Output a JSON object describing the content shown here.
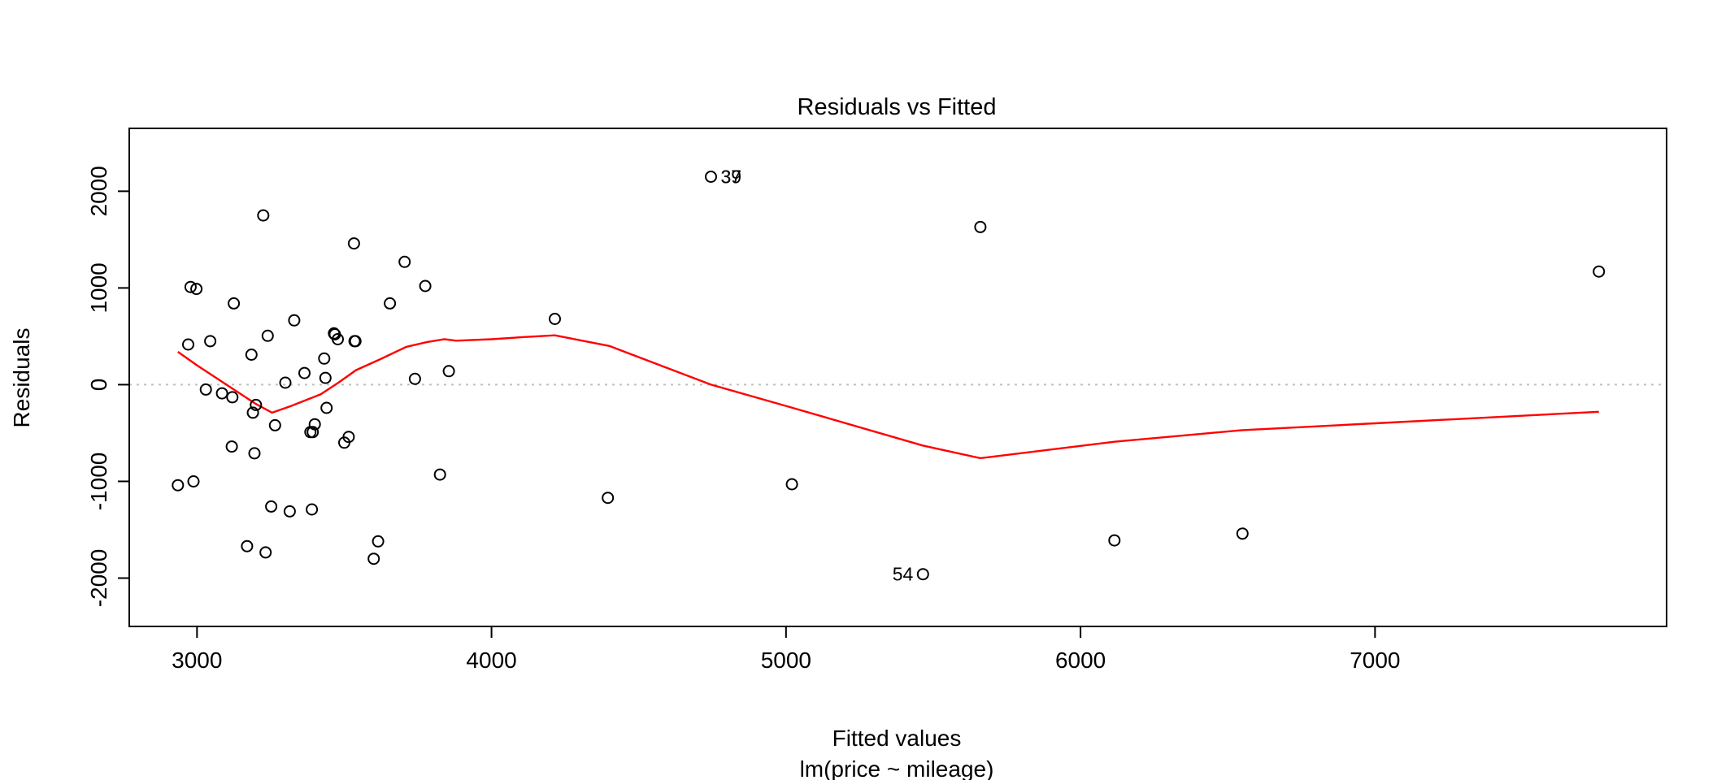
{
  "chart_data": {
    "type": "scatter",
    "title": "Residuals vs Fitted",
    "xlabel": "Fitted values",
    "subtitle": "lm(price ~ mileage)",
    "ylabel": "Residuals",
    "xlim": [
      2770,
      7990
    ],
    "ylim": [
      -2500,
      2650
    ],
    "x_ticks": [
      3000,
      4000,
      5000,
      6000,
      7000
    ],
    "y_ticks": [
      -2000,
      -1000,
      0,
      1000,
      2000
    ],
    "zero_line": 0,
    "grid": false,
    "colors": {
      "points": "#000000",
      "smooth": "#ff0000",
      "zero_line": "#bfbfbf"
    },
    "points": [
      {
        "x": 2935,
        "y": -1040
      },
      {
        "x": 2970,
        "y": 415
      },
      {
        "x": 2978,
        "y": 1010
      },
      {
        "x": 2988,
        "y": -1000
      },
      {
        "x": 2998,
        "y": 990
      },
      {
        "x": 3030,
        "y": -50
      },
      {
        "x": 3045,
        "y": 450
      },
      {
        "x": 3085,
        "y": -90
      },
      {
        "x": 3118,
        "y": -640
      },
      {
        "x": 3120,
        "y": -130
      },
      {
        "x": 3125,
        "y": 840
      },
      {
        "x": 3170,
        "y": -1670
      },
      {
        "x": 3185,
        "y": 310
      },
      {
        "x": 3190,
        "y": -290
      },
      {
        "x": 3195,
        "y": -710
      },
      {
        "x": 3200,
        "y": -210
      },
      {
        "x": 3225,
        "y": 1750
      },
      {
        "x": 3233,
        "y": -1735
      },
      {
        "x": 3240,
        "y": 505
      },
      {
        "x": 3252,
        "y": -1260
      },
      {
        "x": 3265,
        "y": -420
      },
      {
        "x": 3300,
        "y": 20
      },
      {
        "x": 3315,
        "y": -1310
      },
      {
        "x": 3330,
        "y": 665
      },
      {
        "x": 3365,
        "y": 120
      },
      {
        "x": 3385,
        "y": -490
      },
      {
        "x": 3390,
        "y": -1290
      },
      {
        "x": 3393,
        "y": -490
      },
      {
        "x": 3400,
        "y": -410
      },
      {
        "x": 3432,
        "y": 270
      },
      {
        "x": 3436,
        "y": 70
      },
      {
        "x": 3440,
        "y": -240
      },
      {
        "x": 3465,
        "y": 530
      },
      {
        "x": 3468,
        "y": 520
      },
      {
        "x": 3478,
        "y": 470
      },
      {
        "x": 3500,
        "y": -600
      },
      {
        "x": 3515,
        "y": -540
      },
      {
        "x": 3533,
        "y": 1460
      },
      {
        "x": 3535,
        "y": 450
      },
      {
        "x": 3538,
        "y": 450
      },
      {
        "x": 3600,
        "y": -1800
      },
      {
        "x": 3615,
        "y": -1620
      },
      {
        "x": 3655,
        "y": 840
      },
      {
        "x": 3705,
        "y": 1270
      },
      {
        "x": 3740,
        "y": 60
      },
      {
        "x": 3775,
        "y": 1020
      },
      {
        "x": 3825,
        "y": -930
      },
      {
        "x": 3855,
        "y": 140
      },
      {
        "x": 4215,
        "y": 680
      },
      {
        "x": 4395,
        "y": -1170
      },
      {
        "x": 4745,
        "y": 2150
      },
      {
        "x": 5020,
        "y": -1030
      },
      {
        "x": 5465,
        "y": -1960
      },
      {
        "x": 5660,
        "y": 1630
      },
      {
        "x": 6115,
        "y": -1610
      },
      {
        "x": 6550,
        "y": -1540
      },
      {
        "x": 7760,
        "y": 1170
      }
    ],
    "annotations": [
      {
        "text": "37",
        "x": 4745,
        "y": 2150
      },
      {
        "text": "39",
        "x": 4745,
        "y": 2150
      },
      {
        "text": "54",
        "x": 5465,
        "y": -1960
      }
    ],
    "smooth_line": [
      {
        "x": 2935,
        "y": 340
      },
      {
        "x": 3000,
        "y": 200
      },
      {
        "x": 3100,
        "y": 0
      },
      {
        "x": 3200,
        "y": -200
      },
      {
        "x": 3255,
        "y": -290
      },
      {
        "x": 3320,
        "y": -220
      },
      {
        "x": 3420,
        "y": -100
      },
      {
        "x": 3480,
        "y": 20
      },
      {
        "x": 3540,
        "y": 150
      },
      {
        "x": 3620,
        "y": 260
      },
      {
        "x": 3710,
        "y": 390
      },
      {
        "x": 3780,
        "y": 440
      },
      {
        "x": 3840,
        "y": 470
      },
      {
        "x": 3880,
        "y": 455
      },
      {
        "x": 4000,
        "y": 470
      },
      {
        "x": 4100,
        "y": 490
      },
      {
        "x": 4215,
        "y": 510
      },
      {
        "x": 4400,
        "y": 400
      },
      {
        "x": 4745,
        "y": 0
      },
      {
        "x": 5000,
        "y": -220
      },
      {
        "x": 5465,
        "y": -630
      },
      {
        "x": 5660,
        "y": -760
      },
      {
        "x": 6115,
        "y": -590
      },
      {
        "x": 6550,
        "y": -470
      },
      {
        "x": 7000,
        "y": -400
      },
      {
        "x": 7760,
        "y": -280
      }
    ]
  }
}
